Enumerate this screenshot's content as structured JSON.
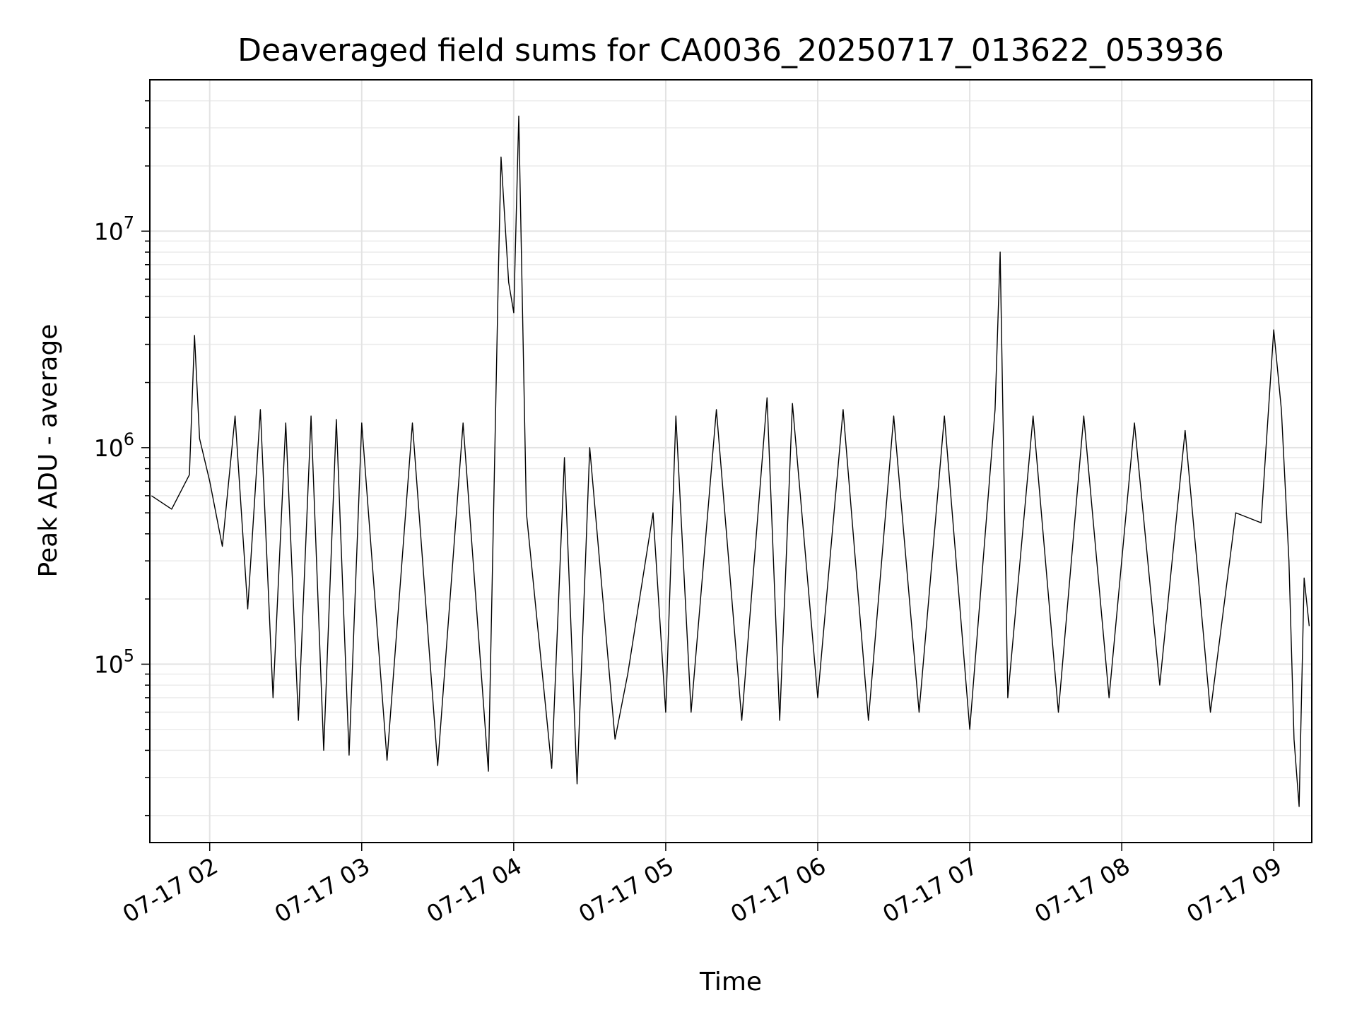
{
  "chart_data": {
    "type": "line",
    "title": "Deaveraged field sums for CA0036_20250717_013622_053936",
    "xlabel": "Time",
    "ylabel": "Peak ADU - average",
    "yscale": "log",
    "xlim": [
      "2025-07-17T01:36:22",
      "2025-07-17T09:15:00"
    ],
    "ylim": [
      15000,
      50000000
    ],
    "grid": true,
    "x_ticks": [
      "07-17 02",
      "07-17 03",
      "07-17 04",
      "07-17 05",
      "07-17 06",
      "07-17 07",
      "07-17 08",
      "07-17 09"
    ],
    "x_tick_times": [
      "2025-07-17T02:00:00",
      "2025-07-17T03:00:00",
      "2025-07-17T04:00:00",
      "2025-07-17T05:00:00",
      "2025-07-17T06:00:00",
      "2025-07-17T07:00:00",
      "2025-07-17T08:00:00",
      "2025-07-17T09:00:00"
    ],
    "y_ticks": [
      {
        "value": 100000,
        "base": "10",
        "exp": "5"
      },
      {
        "value": 1000000,
        "base": "10",
        "exp": "6"
      },
      {
        "value": 10000000,
        "base": "10",
        "exp": "7"
      }
    ],
    "series": [
      {
        "color": "#000000",
        "points": [
          [
            "2025-07-17T01:37:00",
            600000
          ],
          [
            "2025-07-17T01:45:00",
            520000
          ],
          [
            "2025-07-17T01:52:00",
            750000
          ],
          [
            "2025-07-17T01:54:00",
            3300000
          ],
          [
            "2025-07-17T01:56:00",
            1100000
          ],
          [
            "2025-07-17T02:00:00",
            700000
          ],
          [
            "2025-07-17T02:05:00",
            350000
          ],
          [
            "2025-07-17T02:10:00",
            1400000
          ],
          [
            "2025-07-17T02:15:00",
            180000
          ],
          [
            "2025-07-17T02:20:00",
            1500000
          ],
          [
            "2025-07-17T02:25:00",
            70000
          ],
          [
            "2025-07-17T02:30:00",
            1300000
          ],
          [
            "2025-07-17T02:35:00",
            55000
          ],
          [
            "2025-07-17T02:40:00",
            1400000
          ],
          [
            "2025-07-17T02:45:00",
            40000
          ],
          [
            "2025-07-17T02:50:00",
            1350000
          ],
          [
            "2025-07-17T02:55:00",
            38000
          ],
          [
            "2025-07-17T03:00:00",
            1300000
          ],
          [
            "2025-07-17T03:10:00",
            36000
          ],
          [
            "2025-07-17T03:20:00",
            1300000
          ],
          [
            "2025-07-17T03:30:00",
            34000
          ],
          [
            "2025-07-17T03:40:00",
            1300000
          ],
          [
            "2025-07-17T03:50:00",
            32000
          ],
          [
            "2025-07-17T03:54:00",
            7000000
          ],
          [
            "2025-07-17T03:55:00",
            22000000
          ],
          [
            "2025-07-17T03:58:00",
            5800000
          ],
          [
            "2025-07-17T04:00:00",
            4200000
          ],
          [
            "2025-07-17T04:02:00",
            34000000
          ],
          [
            "2025-07-17T04:05:00",
            500000
          ],
          [
            "2025-07-17T04:15:00",
            33000
          ],
          [
            "2025-07-17T04:20:00",
            900000
          ],
          [
            "2025-07-17T04:25:00",
            28000
          ],
          [
            "2025-07-17T04:30:00",
            1000000
          ],
          [
            "2025-07-17T04:40:00",
            45000
          ],
          [
            "2025-07-17T04:45:00",
            90000
          ],
          [
            "2025-07-17T04:55:00",
            500000
          ],
          [
            "2025-07-17T05:00:00",
            60000
          ],
          [
            "2025-07-17T05:04:00",
            1400000
          ],
          [
            "2025-07-17T05:10:00",
            60000
          ],
          [
            "2025-07-17T05:20:00",
            1500000
          ],
          [
            "2025-07-17T05:30:00",
            55000
          ],
          [
            "2025-07-17T05:40:00",
            1700000
          ],
          [
            "2025-07-17T05:45:00",
            55000
          ],
          [
            "2025-07-17T05:50:00",
            1600000
          ],
          [
            "2025-07-17T06:00:00",
            70000
          ],
          [
            "2025-07-17T06:10:00",
            1500000
          ],
          [
            "2025-07-17T06:20:00",
            55000
          ],
          [
            "2025-07-17T06:30:00",
            1400000
          ],
          [
            "2025-07-17T06:40:00",
            60000
          ],
          [
            "2025-07-17T06:50:00",
            1400000
          ],
          [
            "2025-07-17T07:00:00",
            50000
          ],
          [
            "2025-07-17T07:10:00",
            1500000
          ],
          [
            "2025-07-17T07:12:00",
            8000000
          ],
          [
            "2025-07-17T07:15:00",
            70000
          ],
          [
            "2025-07-17T07:25:00",
            1400000
          ],
          [
            "2025-07-17T07:35:00",
            60000
          ],
          [
            "2025-07-17T07:45:00",
            1400000
          ],
          [
            "2025-07-17T07:55:00",
            70000
          ],
          [
            "2025-07-17T08:05:00",
            1300000
          ],
          [
            "2025-07-17T08:15:00",
            80000
          ],
          [
            "2025-07-17T08:25:00",
            1200000
          ],
          [
            "2025-07-17T08:35:00",
            60000
          ],
          [
            "2025-07-17T08:45:00",
            500000
          ],
          [
            "2025-07-17T08:55:00",
            450000
          ],
          [
            "2025-07-17T09:00:00",
            3500000
          ],
          [
            "2025-07-17T09:03:00",
            1500000
          ],
          [
            "2025-07-17T09:06:00",
            300000
          ],
          [
            "2025-07-17T09:08:00",
            45000
          ],
          [
            "2025-07-17T09:10:00",
            22000
          ],
          [
            "2025-07-17T09:12:00",
            250000
          ],
          [
            "2025-07-17T09:14:00",
            150000
          ]
        ]
      }
    ]
  }
}
